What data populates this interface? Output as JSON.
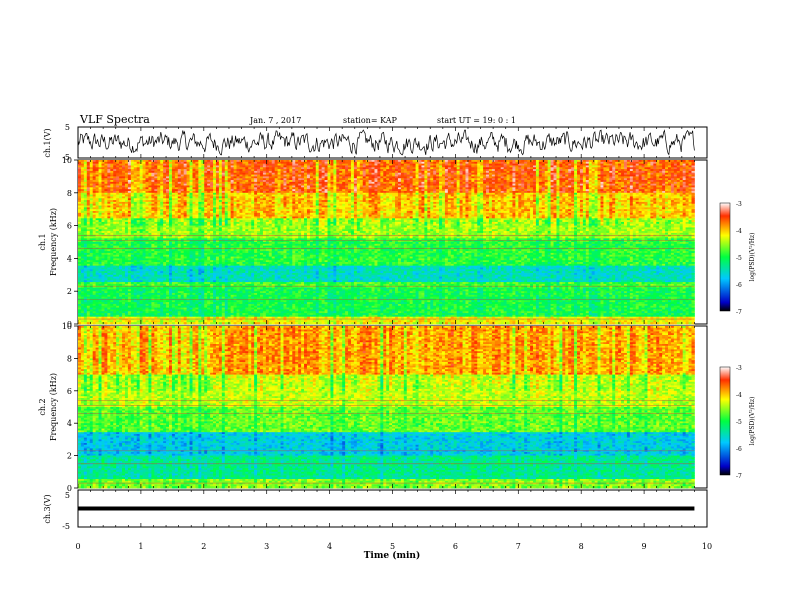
{
  "header": {
    "title": "VLF Spectra",
    "date": "Jan. 7 , 2017",
    "station": "station= KAP",
    "start": "start UT =  19: 0  : 1"
  },
  "chart_data": [
    {
      "type": "line",
      "panel": "ch1-waveform",
      "ylabel": "ch.1(V)",
      "ylim": [
        -5,
        5
      ],
      "yticks": [
        -5,
        5
      ],
      "xlim": [
        0,
        10
      ],
      "trace": "noisy waveform, amplitude roughly -4 to 4 V, data ends near 9.8 min"
    },
    {
      "type": "heatmap",
      "panel": "ch1-spectrogram",
      "ylabel": "ch.1\nFrequency (kHz)",
      "ylim": [
        0,
        10
      ],
      "yticks": [
        0,
        2,
        4,
        6,
        8,
        10
      ],
      "xlim": [
        0,
        9.8
      ],
      "colorbar": {
        "label": "log(PSD)(V²/Hz)",
        "range": [
          -7,
          -3
        ],
        "ticks": [
          -3,
          -4,
          -5,
          -6,
          -7
        ]
      },
      "bands": [
        {
          "from": 0,
          "to": 0.5,
          "level": -4.2
        },
        {
          "from": 0.5,
          "to": 2.2,
          "level": -5.0
        },
        {
          "from": 2.2,
          "to": 2.6,
          "level": -4.8
        },
        {
          "from": 2.6,
          "to": 3.6,
          "level": -5.5
        },
        {
          "from": 3.6,
          "to": 5.2,
          "level": -4.9
        },
        {
          "from": 5.2,
          "to": 6.5,
          "level": -4.5
        },
        {
          "from": 6.5,
          "to": 8.0,
          "level": -4.0
        },
        {
          "from": 8.0,
          "to": 10.0,
          "level": -3.6
        }
      ]
    },
    {
      "type": "heatmap",
      "panel": "ch2-spectrogram",
      "ylabel": "ch.2\nFrequency (kHz)",
      "ylim": [
        0,
        10
      ],
      "yticks": [
        0,
        2,
        4,
        6,
        8,
        10
      ],
      "xlim": [
        0,
        9.8
      ],
      "colorbar": {
        "label": "log(PSD)(V²/Hz)",
        "range": [
          -7,
          -3
        ],
        "ticks": [
          -3,
          -4,
          -5,
          -6,
          -7
        ]
      },
      "bands": [
        {
          "from": 0,
          "to": 0.6,
          "level": -4.6
        },
        {
          "from": 0.6,
          "to": 2.0,
          "level": -5.3
        },
        {
          "from": 2.0,
          "to": 3.5,
          "level": -5.7
        },
        {
          "from": 3.5,
          "to": 5.0,
          "level": -4.7
        },
        {
          "from": 5.0,
          "to": 7.0,
          "level": -4.4
        },
        {
          "from": 7.0,
          "to": 10.0,
          "level": -3.9
        }
      ]
    },
    {
      "type": "line",
      "panel": "ch3-waveform",
      "ylabel": "ch.3(V)",
      "ylim": [
        -5,
        5
      ],
      "yticks": [
        -5,
        5
      ],
      "xlim": [
        0,
        10
      ],
      "trace": "flat line near 0 V, data ends near 9.8 min"
    }
  ],
  "xaxis": {
    "label": "Time (min)",
    "ticks": [
      "0",
      "1",
      "2",
      "3",
      "4",
      "5",
      "6",
      "7",
      "8",
      "9",
      "10"
    ]
  },
  "colorbar_labels": {
    "top": "-3",
    "m4": "-4",
    "m5": "-5",
    "m6": "-6",
    "bottom": "-7",
    "title": "log(PSD)(V²/Hz)"
  }
}
